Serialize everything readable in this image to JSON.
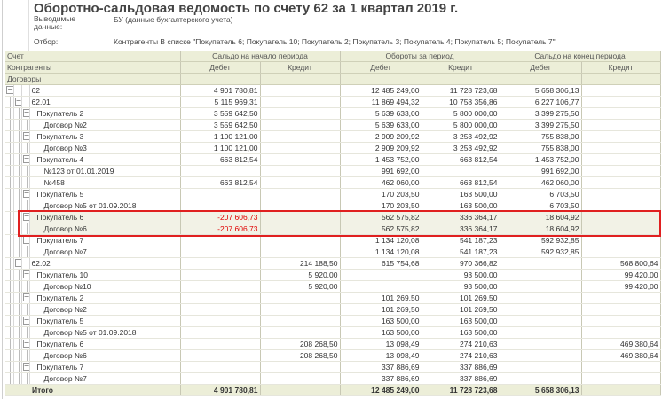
{
  "title": "Оборотно-сальдовая ведомость по счету 62 за 1 квартал 2019 г.",
  "meta": {
    "data_label": "Выводимые данные:",
    "data_value": "БУ (данные бухгалтерского учета)",
    "filter_label": "Отбор:",
    "filter_value": "Контрагенты В списке \"Покупатель 6; Покупатель 10; Покупатель 2; Покупатель 3; Покупатель 4; Покупатель 5; Покупатель 7\""
  },
  "header": {
    "account": "Счет",
    "counterparties": "Контрагенты",
    "contracts": "Договоры",
    "opening": "Сальдо на начало периода",
    "turnover": "Обороты за период",
    "closing": "Сальдо на конец периода",
    "debit": "Дебет",
    "credit": "Кредит"
  },
  "rows": [
    {
      "name": "62",
      "level": 0,
      "od": "4 901 780,81",
      "oc": "",
      "td": "12 485 249,00",
      "tc": "11 728 723,68",
      "cd": "5 658 306,13",
      "cc": ""
    },
    {
      "name": "62.01",
      "level": 1,
      "od": "5 115 969,31",
      "oc": "",
      "td": "11 869 494,32",
      "tc": "10 758 356,86",
      "cd": "6 227 106,77",
      "cc": ""
    },
    {
      "name": "Покупатель 2",
      "level": 2,
      "od": "3 559 642,50",
      "oc": "",
      "td": "5 639 633,00",
      "tc": "5 800 000,00",
      "cd": "3 399 275,50",
      "cc": ""
    },
    {
      "name": "Договор №2",
      "level": 3,
      "od": "3 559 642,50",
      "oc": "",
      "td": "5 639 633,00",
      "tc": "5 800 000,00",
      "cd": "3 399 275,50",
      "cc": ""
    },
    {
      "name": "Покупатель 3",
      "level": 2,
      "od": "1 100 121,00",
      "oc": "",
      "td": "2 909 209,92",
      "tc": "3 253 492,92",
      "cd": "755 838,00",
      "cc": ""
    },
    {
      "name": "Договор №3",
      "level": 3,
      "od": "1 100 121,00",
      "oc": "",
      "td": "2 909 209,92",
      "tc": "3 253 492,92",
      "cd": "755 838,00",
      "cc": ""
    },
    {
      "name": "Покупатель 4",
      "level": 2,
      "od": "663 812,54",
      "oc": "",
      "td": "1 453 752,00",
      "tc": "663 812,54",
      "cd": "1 453 752,00",
      "cc": ""
    },
    {
      "name": "№123 от 01.01.2019",
      "level": 3,
      "od": "",
      "oc": "",
      "td": "991 692,00",
      "tc": "",
      "cd": "991 692,00",
      "cc": ""
    },
    {
      "name": "№458",
      "level": 3,
      "od": "663 812,54",
      "oc": "",
      "td": "462 060,00",
      "tc": "663 812,54",
      "cd": "462 060,00",
      "cc": ""
    },
    {
      "name": "Покупатель 5",
      "level": 2,
      "od": "",
      "oc": "",
      "td": "170 203,50",
      "tc": "163 500,00",
      "cd": "6 703,50",
      "cc": ""
    },
    {
      "name": "Договор №5 от 01.09.2018",
      "level": 3,
      "od": "",
      "oc": "",
      "td": "170 203,50",
      "tc": "163 500,00",
      "cd": "6 703,50",
      "cc": ""
    },
    {
      "name": "Покупатель 6",
      "level": 2,
      "od": "-207 606,73",
      "oc": "",
      "td": "562 575,82",
      "tc": "336 364,17",
      "cd": "18 604,92",
      "cc": "",
      "neg": true,
      "hl": true
    },
    {
      "name": "Договор №6",
      "level": 3,
      "od": "-207 606,73",
      "oc": "",
      "td": "562 575,82",
      "tc": "336 364,17",
      "cd": "18 604,92",
      "cc": "",
      "neg": true,
      "hl": true
    },
    {
      "name": "Покупатель 7",
      "level": 2,
      "od": "",
      "oc": "",
      "td": "1 134 120,08",
      "tc": "541 187,23",
      "cd": "592 932,85",
      "cc": ""
    },
    {
      "name": "Договор №7",
      "level": 3,
      "od": "",
      "oc": "",
      "td": "1 134 120,08",
      "tc": "541 187,23",
      "cd": "592 932,85",
      "cc": ""
    },
    {
      "name": "62.02",
      "level": 1,
      "od": "",
      "oc": "214 188,50",
      "td": "615 754,68",
      "tc": "970 366,82",
      "cd": "",
      "cc": "568 800,64"
    },
    {
      "name": "Покупатель 10",
      "level": 2,
      "od": "",
      "oc": "5 920,00",
      "td": "",
      "tc": "93 500,00",
      "cd": "",
      "cc": "99 420,00"
    },
    {
      "name": "Договор №10",
      "level": 3,
      "od": "",
      "oc": "5 920,00",
      "td": "",
      "tc": "93 500,00",
      "cd": "",
      "cc": "99 420,00"
    },
    {
      "name": "Покупатель 2",
      "level": 2,
      "od": "",
      "oc": "",
      "td": "101 269,50",
      "tc": "101 269,50",
      "cd": "",
      "cc": ""
    },
    {
      "name": "Договор №2",
      "level": 3,
      "od": "",
      "oc": "",
      "td": "101 269,50",
      "tc": "101 269,50",
      "cd": "",
      "cc": ""
    },
    {
      "name": "Покупатель 5",
      "level": 2,
      "od": "",
      "oc": "",
      "td": "163 500,00",
      "tc": "163 500,00",
      "cd": "",
      "cc": ""
    },
    {
      "name": "Договор №5 от 01.09.2018",
      "level": 3,
      "od": "",
      "oc": "",
      "td": "163 500,00",
      "tc": "163 500,00",
      "cd": "",
      "cc": ""
    },
    {
      "name": "Покупатель 6",
      "level": 2,
      "od": "",
      "oc": "208 268,50",
      "td": "13 098,49",
      "tc": "274 210,63",
      "cd": "",
      "cc": "469 380,64"
    },
    {
      "name": "Договор №6",
      "level": 3,
      "od": "",
      "oc": "208 268,50",
      "td": "13 098,49",
      "tc": "274 210,63",
      "cd": "",
      "cc": "469 380,64"
    },
    {
      "name": "Покупатель 7",
      "level": 2,
      "od": "",
      "oc": "",
      "td": "337 886,69",
      "tc": "337 886,69",
      "cd": "",
      "cc": ""
    },
    {
      "name": "Договор №7",
      "level": 3,
      "od": "",
      "oc": "",
      "td": "337 886,69",
      "tc": "337 886,69",
      "cd": "",
      "cc": ""
    }
  ],
  "total": {
    "name": "Итого",
    "od": "4 901 780,81",
    "oc": "",
    "td": "12 485 249,00",
    "tc": "11 728 723,68",
    "cd": "5 658 306,13",
    "cc": ""
  }
}
